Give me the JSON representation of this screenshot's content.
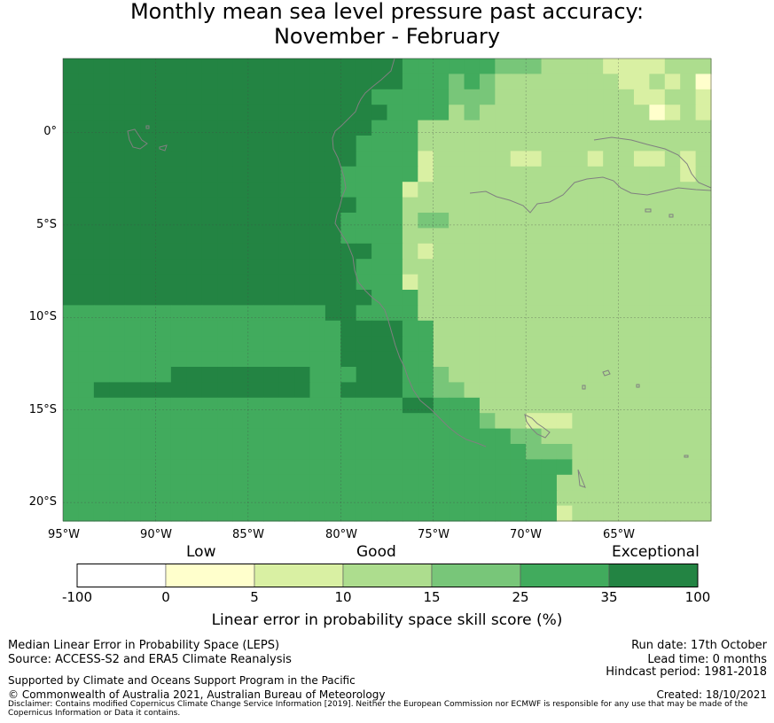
{
  "title_line1": "Monthly mean sea level pressure past accuracy:",
  "title_line2": "November - February",
  "map": {
    "lon_labels": [
      "95°W",
      "90°W",
      "85°W",
      "80°W",
      "75°W",
      "70°W",
      "65°W"
    ],
    "lat_labels": [
      "0°",
      "5°S",
      "10°S",
      "15°S",
      "20°S"
    ],
    "lon_range": [
      -95,
      -60
    ],
    "lat_range": [
      -21,
      4
    ],
    "cell_size_deg": 0.83,
    "grid_cols": 42,
    "grid_rows": 30,
    "skill_rows": [
      "666666666666666666666655555544433332222333",
      "666666666666666666666655545433333333223231",
      "666666666666666666665555544433333333322332",
      "666666666666666666666555534333333333331232",
      "666666666666666666665553333333333333333333",
      "666666666666666666655553333333333333333333",
      "666666666666666666655552333332233323322323",
      "666666666666666666555552333333333333333323",
      "666666666666666666555523333333333333333333",
      "666666666666666666655533333333333333333333",
      "666666666666666666555534433333333333333333",
      "666666666666666666555533333333333333333333",
      "666666666666666666665532333333333333333333",
      "666666666666666666655533333333333333333333",
      "666666666666666666655523333333333333333333",
      "666666666666666666665553333333333333333333",
      "555555555555555556655553333333333333333333",
      "555555555555555555666655333333333333333333",
      "555555555555555555666655333333333333333333",
      "555555555555555555666655333333333333333333",
      "555555566666666655566655433333333333333333",
      "556666666666666655666655443333333333333333",
      "555555555555555555555566555333333333333333",
      "555555555555555555555555555433222333333333",
      "555555555555555555555555555554433333333333",
      "555555555555555555555555555555444333333333",
      "555555555555555555555555555555555333333333",
      "555555555555555555555555555555553333333333",
      "555555555555555555555555555555553333333333",
      "555555555555555555555555555555552333333333"
    ]
  },
  "colorbar": {
    "category_labels": [
      "Low",
      "Good",
      "Exceptional"
    ],
    "tick_labels": [
      "-100",
      "0",
      "5",
      "10",
      "15",
      "25",
      "35",
      "100"
    ],
    "colors": [
      "#ffffff",
      "#ffffcc",
      "#d9f0a3",
      "#addd8e",
      "#78c679",
      "#41ab5d",
      "#238443"
    ],
    "label": "Linear error in probability space skill score (%)"
  },
  "footer": {
    "left_line1": "Median Linear Error in Probability Space (LEPS)",
    "left_line2": "Source: ACCESS-S2 and ERA5 Climate Reanalysis",
    "left_line3": "Supported by Climate and Oceans Support Program in the Pacific",
    "left_line4": "© Commonwealth of Australia 2021, Australian Bureau of Meteorology",
    "right_line1": "Run date: 17th October",
    "right_line2": "Lead time: 0 months",
    "right_line3": "Hindcast period: 1981-2018",
    "right_line4": "Created: 18/10/2021",
    "disclaimer": "Disclaimer: Contains modified Copernicus Climate Change Service Information [2019]. Neither the European Commission nor ECMWF is responsible for any use that may be made of the Copernicus Information or Data it contains."
  }
}
